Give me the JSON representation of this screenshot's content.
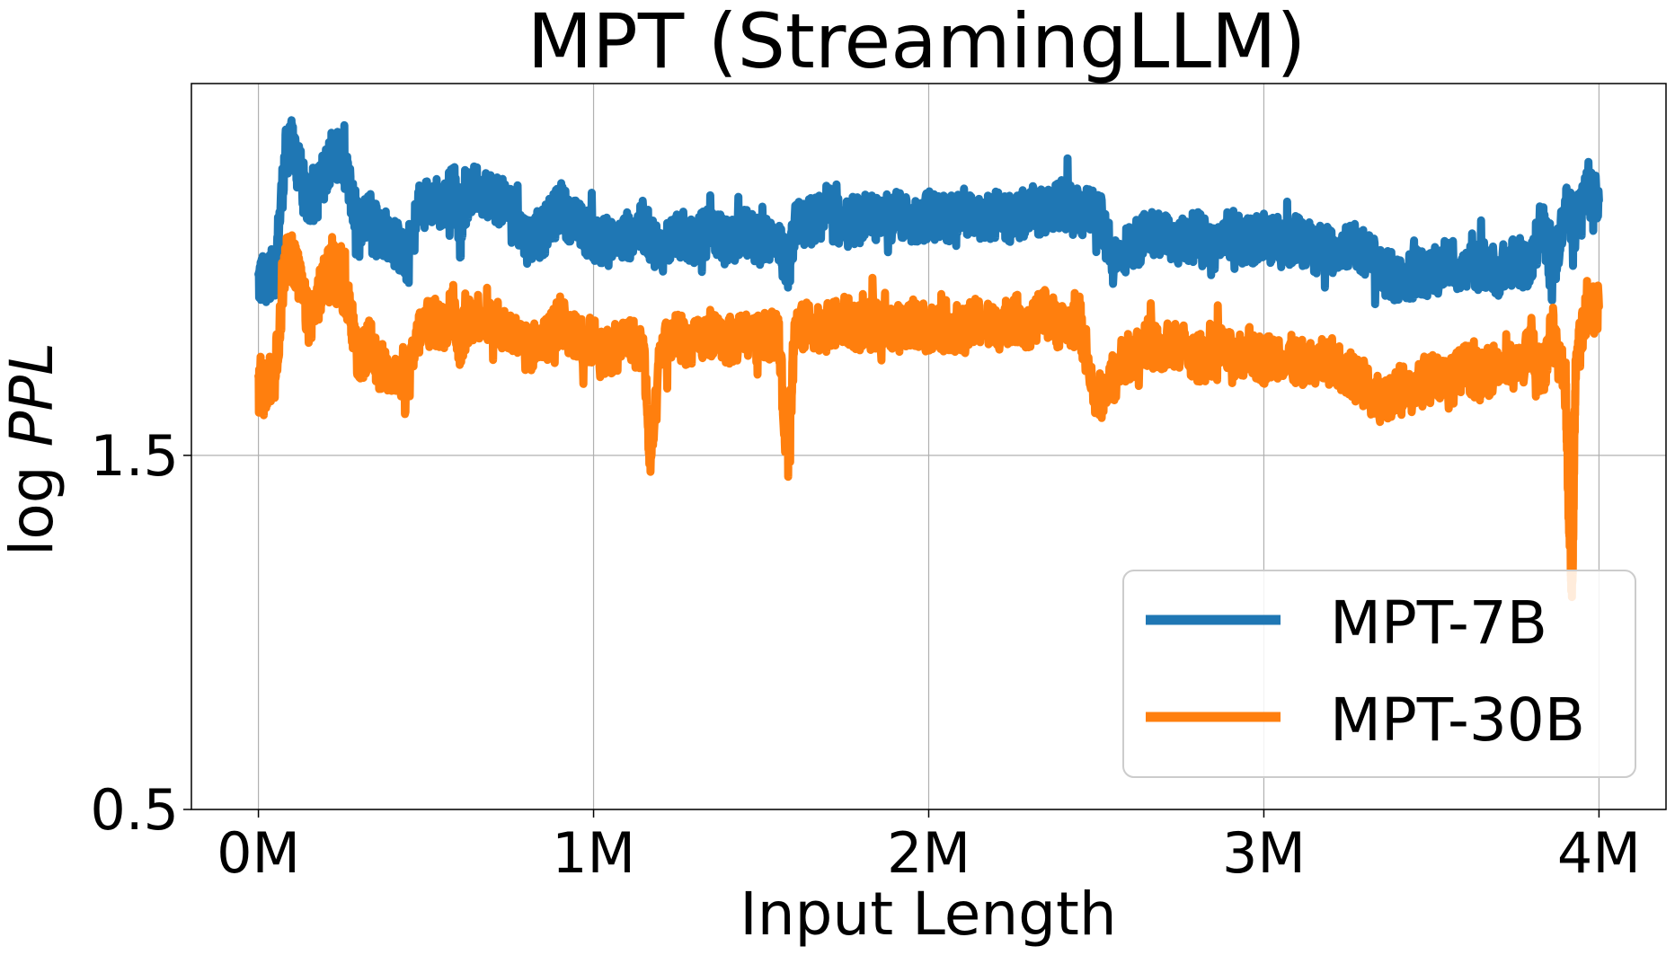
{
  "chart_data": {
    "type": "line",
    "title": "MPT (StreamingLLM)",
    "xlabel": "Input Length",
    "ylabel": "log PPL",
    "xlim": [
      -0.2,
      4.2
    ],
    "ylim": [
      0.5,
      2.55
    ],
    "x_unit": "M tokens",
    "x_ticks": [
      {
        "value": 0,
        "label": "0M"
      },
      {
        "value": 1,
        "label": "1M"
      },
      {
        "value": 2,
        "label": "2M"
      },
      {
        "value": 3,
        "label": "3M"
      },
      {
        "value": 4,
        "label": "4M"
      }
    ],
    "y_ticks": [
      {
        "value": 0.5,
        "label": "0.5"
      },
      {
        "value": 1.5,
        "label": "1.5"
      }
    ],
    "grid": true,
    "legend": {
      "position": "lower-right"
    },
    "series": [
      {
        "name": "MPT-7B",
        "color": "#1f77b4",
        "x": [
          0.0,
          0.02,
          0.05,
          0.08,
          0.1,
          0.12,
          0.15,
          0.18,
          0.2,
          0.22,
          0.25,
          0.28,
          0.3,
          0.33,
          0.36,
          0.4,
          0.44,
          0.48,
          0.52,
          0.55,
          0.58,
          0.6,
          0.62,
          0.65,
          0.7,
          0.75,
          0.8,
          0.85,
          0.9,
          0.95,
          1.0,
          1.05,
          1.1,
          1.15,
          1.2,
          1.25,
          1.3,
          1.35,
          1.4,
          1.45,
          1.5,
          1.55,
          1.58,
          1.6,
          1.65,
          1.7,
          1.75,
          1.8,
          1.85,
          1.9,
          1.95,
          2.0,
          2.05,
          2.1,
          2.15,
          2.2,
          2.25,
          2.3,
          2.35,
          2.4,
          2.45,
          2.5,
          2.55,
          2.6,
          2.65,
          2.7,
          2.75,
          2.8,
          2.85,
          2.9,
          2.95,
          3.0,
          3.05,
          3.1,
          3.15,
          3.2,
          3.25,
          3.3,
          3.35,
          3.4,
          3.45,
          3.5,
          3.55,
          3.6,
          3.65,
          3.7,
          3.75,
          3.8,
          3.83,
          3.86,
          3.9,
          3.93,
          3.96,
          4.0
        ],
        "y": [
          1.99,
          2.0,
          2.02,
          2.35,
          2.38,
          2.32,
          2.2,
          2.26,
          2.3,
          2.36,
          2.33,
          2.23,
          2.13,
          2.2,
          2.13,
          2.12,
          2.05,
          2.2,
          2.23,
          2.2,
          2.26,
          2.16,
          2.22,
          2.26,
          2.23,
          2.2,
          2.11,
          2.13,
          2.2,
          2.15,
          2.12,
          2.1,
          2.12,
          2.14,
          2.08,
          2.13,
          2.1,
          2.14,
          2.1,
          2.13,
          2.1,
          2.12,
          2.0,
          2.15,
          2.16,
          2.18,
          2.15,
          2.17,
          2.16,
          2.18,
          2.16,
          2.18,
          2.17,
          2.19,
          2.16,
          2.18,
          2.16,
          2.2,
          2.18,
          2.21,
          2.18,
          2.2,
          2.05,
          2.09,
          2.12,
          2.14,
          2.1,
          2.12,
          2.09,
          2.13,
          2.1,
          2.12,
          2.1,
          2.11,
          2.09,
          2.08,
          2.1,
          2.07,
          2.03,
          1.99,
          2.02,
          2.01,
          2.05,
          2.02,
          2.04,
          2.02,
          2.05,
          2.03,
          2.18,
          2.0,
          2.2,
          2.15,
          2.24,
          2.22
        ]
      },
      {
        "name": "MPT-30B",
        "color": "#ff7f0e",
        "x": [
          0.0,
          0.02,
          0.05,
          0.08,
          0.1,
          0.12,
          0.15,
          0.18,
          0.2,
          0.22,
          0.25,
          0.28,
          0.3,
          0.33,
          0.36,
          0.4,
          0.44,
          0.48,
          0.52,
          0.55,
          0.58,
          0.6,
          0.62,
          0.65,
          0.7,
          0.75,
          0.8,
          0.85,
          0.9,
          0.95,
          1.0,
          1.05,
          1.1,
          1.15,
          1.17,
          1.2,
          1.25,
          1.3,
          1.35,
          1.4,
          1.45,
          1.5,
          1.55,
          1.58,
          1.6,
          1.65,
          1.7,
          1.75,
          1.8,
          1.85,
          1.9,
          1.95,
          2.0,
          2.05,
          2.1,
          2.15,
          2.2,
          2.25,
          2.3,
          2.35,
          2.4,
          2.45,
          2.5,
          2.55,
          2.6,
          2.65,
          2.7,
          2.75,
          2.8,
          2.85,
          2.9,
          2.95,
          3.0,
          3.05,
          3.1,
          3.15,
          3.2,
          3.25,
          3.3,
          3.35,
          3.4,
          3.45,
          3.5,
          3.55,
          3.6,
          3.65,
          3.7,
          3.75,
          3.8,
          3.83,
          3.86,
          3.9,
          3.91,
          3.92,
          3.93,
          3.96,
          4.0
        ],
        "y": [
          1.68,
          1.7,
          1.73,
          2.04,
          2.07,
          2.0,
          1.88,
          1.95,
          2.0,
          2.05,
          1.98,
          1.88,
          1.75,
          1.82,
          1.75,
          1.74,
          1.68,
          1.85,
          1.88,
          1.86,
          1.92,
          1.82,
          1.87,
          1.9,
          1.87,
          1.85,
          1.8,
          1.82,
          1.88,
          1.83,
          1.82,
          1.79,
          1.83,
          1.8,
          1.45,
          1.8,
          1.84,
          1.81,
          1.85,
          1.82,
          1.84,
          1.83,
          1.85,
          1.47,
          1.85,
          1.87,
          1.86,
          1.88,
          1.86,
          1.87,
          1.85,
          1.88,
          1.86,
          1.87,
          1.85,
          1.88,
          1.86,
          1.89,
          1.87,
          1.9,
          1.86,
          1.88,
          1.65,
          1.72,
          1.78,
          1.82,
          1.79,
          1.81,
          1.77,
          1.8,
          1.78,
          1.8,
          1.77,
          1.79,
          1.76,
          1.75,
          1.77,
          1.73,
          1.7,
          1.66,
          1.69,
          1.68,
          1.74,
          1.7,
          1.75,
          1.72,
          1.76,
          1.74,
          1.8,
          1.72,
          1.85,
          1.7,
          1.35,
          1.12,
          1.75,
          1.9,
          1.92
        ]
      }
    ]
  }
}
